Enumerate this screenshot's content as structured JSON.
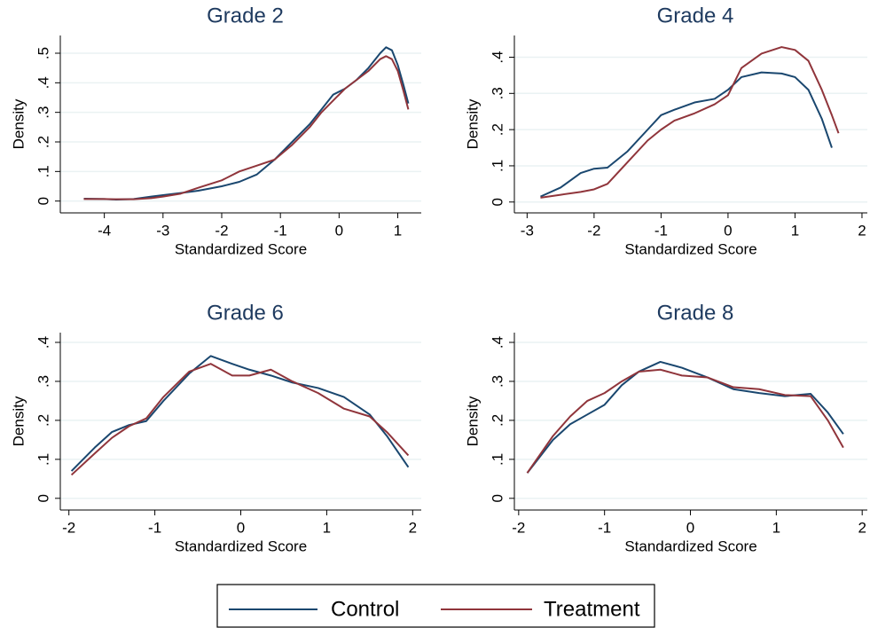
{
  "chart_data": [
    {
      "type": "line",
      "title": "Grade 2",
      "xlabel": "Standardized Score",
      "ylabel": "Density",
      "x": [
        -4.35,
        -4,
        -3.8,
        -3.5,
        -3.2,
        -3,
        -2.7,
        -2.4,
        -2,
        -1.7,
        -1.4,
        -1.1,
        -0.8,
        -0.5,
        -0.3,
        -0.1,
        0.1,
        0.3,
        0.5,
        0.7,
        0.8,
        0.9,
        1.0,
        1.1,
        1.18
      ],
      "series": [
        {
          "name": "Control",
          "color": "#1a476f",
          "values": [
            0.008,
            0.007,
            0.005,
            0.007,
            0.015,
            0.02,
            0.027,
            0.035,
            0.05,
            0.065,
            0.09,
            0.14,
            0.2,
            0.26,
            0.31,
            0.36,
            0.38,
            0.41,
            0.45,
            0.5,
            0.52,
            0.51,
            0.46,
            0.39,
            0.33
          ]
        },
        {
          "name": "Treatment",
          "color": "#90353b",
          "values": [
            0.007,
            0.007,
            0.006,
            0.006,
            0.01,
            0.015,
            0.025,
            0.045,
            0.07,
            0.1,
            0.12,
            0.14,
            0.19,
            0.25,
            0.3,
            0.34,
            0.38,
            0.41,
            0.44,
            0.48,
            0.49,
            0.48,
            0.44,
            0.37,
            0.31
          ]
        }
      ],
      "xlim": [
        -4.75,
        1.4
      ],
      "xticks": [
        -4,
        -3,
        -2,
        -1,
        0,
        1
      ],
      "ylim": [
        -0.04,
        0.56
      ],
      "yticks": [
        0,
        {
          "value": 0.1,
          "label": ".1"
        },
        {
          "value": 0.2,
          "label": ".2"
        },
        {
          "value": 0.3,
          "label": ".3"
        },
        {
          "value": 0.4,
          "label": ".4"
        },
        {
          "value": 0.5,
          "label": ".5"
        }
      ],
      "grid": true
    },
    {
      "type": "line",
      "title": "Grade 4",
      "xlabel": "Standardized Score",
      "ylabel": "Density",
      "x": [
        -2.8,
        -2.5,
        -2.2,
        -2,
        -1.8,
        -1.5,
        -1.2,
        -1,
        -0.8,
        -0.5,
        -0.2,
        0,
        0.2,
        0.5,
        0.8,
        1,
        1.2,
        1.4,
        1.55,
        1.65
      ],
      "series": [
        {
          "name": "Control",
          "color": "#1a476f",
          "values": [
            0.015,
            0.04,
            0.08,
            0.092,
            0.095,
            0.14,
            0.2,
            0.24,
            0.255,
            0.275,
            0.285,
            0.31,
            0.345,
            0.358,
            0.355,
            0.345,
            0.31,
            0.23,
            0.15,
            null
          ]
        },
        {
          "name": "Treatment",
          "color": "#90353b",
          "values": [
            0.012,
            0.02,
            0.028,
            0.035,
            0.05,
            0.11,
            0.17,
            0.2,
            0.225,
            0.245,
            0.27,
            0.295,
            0.37,
            0.41,
            0.428,
            0.42,
            0.39,
            0.31,
            0.24,
            0.19
          ]
        }
      ],
      "xlim": [
        -3.19,
        2.08
      ],
      "xticks": [
        -3,
        -2,
        -1,
        0,
        1,
        2
      ],
      "ylim": [
        -0.03,
        0.46
      ],
      "yticks": [
        0,
        {
          "value": 0.1,
          "label": ".1"
        },
        {
          "value": 0.2,
          "label": ".2"
        },
        {
          "value": 0.3,
          "label": ".3"
        },
        {
          "value": 0.4,
          "label": ".4"
        }
      ],
      "grid": true
    },
    {
      "type": "line",
      "title": "Grade 6",
      "xlabel": "Standardized Score",
      "ylabel": "Density",
      "x": [
        -1.97,
        -1.7,
        -1.5,
        -1.3,
        -1.1,
        -0.9,
        -0.6,
        -0.35,
        -0.1,
        0.1,
        0.35,
        0.6,
        0.9,
        1.2,
        1.5,
        1.7,
        1.95
      ],
      "series": [
        {
          "name": "Control",
          "color": "#1a476f",
          "values": [
            0.07,
            0.13,
            0.17,
            0.188,
            0.198,
            0.25,
            0.32,
            0.365,
            0.345,
            0.33,
            0.315,
            0.297,
            0.283,
            0.26,
            0.215,
            0.16,
            0.08
          ]
        },
        {
          "name": "Treatment",
          "color": "#90353b",
          "values": [
            0.06,
            0.115,
            0.155,
            0.185,
            0.205,
            0.26,
            0.325,
            0.345,
            0.315,
            0.315,
            0.33,
            0.3,
            0.27,
            0.23,
            0.21,
            0.17,
            0.11
          ]
        }
      ],
      "xlim": [
        -2.1,
        2.1
      ],
      "xticks": [
        -2,
        -1,
        0,
        1,
        2
      ],
      "ylim": [
        -0.03,
        0.425
      ],
      "yticks": [
        0,
        {
          "value": 0.1,
          "label": ".1"
        },
        {
          "value": 0.2,
          "label": ".2"
        },
        {
          "value": 0.3,
          "label": ".3"
        },
        {
          "value": 0.4,
          "label": ".4"
        }
      ],
      "grid": true
    },
    {
      "type": "line",
      "title": "Grade 8",
      "xlabel": "Standardized Score",
      "ylabel": "Density",
      "x": [
        -1.9,
        -1.6,
        -1.4,
        -1.2,
        -1,
        -0.8,
        -0.6,
        -0.35,
        -0.1,
        0.2,
        0.5,
        0.8,
        1.1,
        1.4,
        1.6,
        1.78
      ],
      "series": [
        {
          "name": "Control",
          "color": "#1a476f",
          "values": [
            0.065,
            0.15,
            0.19,
            0.215,
            0.24,
            0.29,
            0.325,
            0.35,
            0.335,
            0.31,
            0.28,
            0.27,
            0.262,
            0.268,
            0.22,
            0.165
          ]
        },
        {
          "name": "Treatment",
          "color": "#90353b",
          "values": [
            0.065,
            0.16,
            0.21,
            0.25,
            0.27,
            0.3,
            0.325,
            0.33,
            0.315,
            0.31,
            0.285,
            0.28,
            0.265,
            0.262,
            0.2,
            0.13
          ]
        }
      ],
      "xlim": [
        -2.05,
        2.06
      ],
      "xticks": [
        -2,
        -1,
        0,
        1,
        2
      ],
      "ylim": [
        -0.03,
        0.425
      ],
      "yticks": [
        0,
        {
          "value": 0.1,
          "label": ".1"
        },
        {
          "value": 0.2,
          "label": ".2"
        },
        {
          "value": 0.3,
          "label": ".3"
        },
        {
          "value": 0.4,
          "label": ".4"
        }
      ],
      "grid": true
    }
  ]
}
